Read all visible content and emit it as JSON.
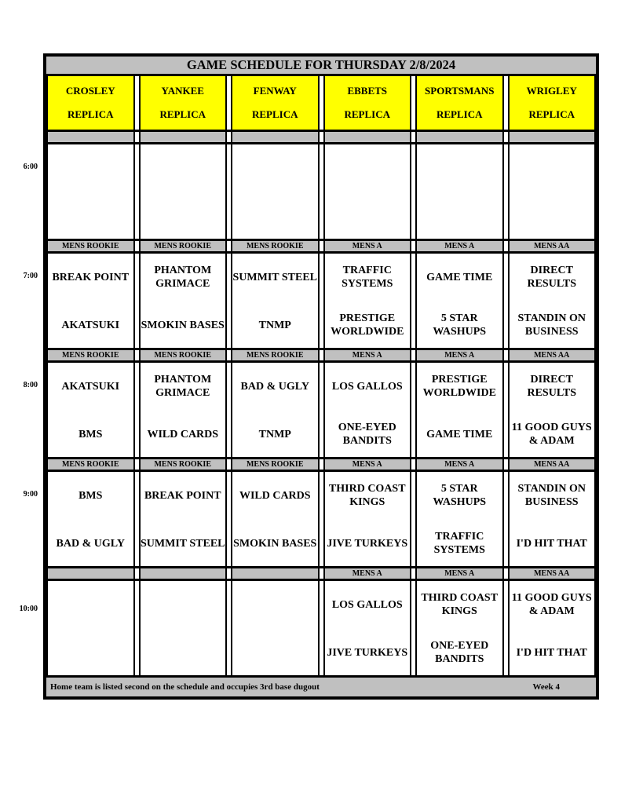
{
  "title": "GAME SCHEDULE FOR THURSDAY 2/8/2024",
  "fields": [
    {
      "name": "CROSLEY",
      "sub": "REPLICA"
    },
    {
      "name": "YANKEE",
      "sub": "REPLICA"
    },
    {
      "name": "FENWAY",
      "sub": "REPLICA"
    },
    {
      "name": "EBBETS",
      "sub": "REPLICA"
    },
    {
      "name": "SPORTSMANS",
      "sub": "REPLICA"
    },
    {
      "name": "WRIGLEY",
      "sub": "REPLICA"
    }
  ],
  "time_slots": [
    {
      "time": "6:00",
      "games": [
        {
          "division": "",
          "away": "",
          "home": ""
        },
        {
          "division": "",
          "away": "",
          "home": ""
        },
        {
          "division": "",
          "away": "",
          "home": ""
        },
        {
          "division": "",
          "away": "",
          "home": ""
        },
        {
          "division": "",
          "away": "",
          "home": ""
        },
        {
          "division": "",
          "away": "",
          "home": ""
        }
      ]
    },
    {
      "time": "7:00",
      "games": [
        {
          "division": "MENS ROOKIE",
          "away": "BREAK POINT",
          "home": "AKATSUKI"
        },
        {
          "division": "MENS ROOKIE",
          "away": "PHANTOM GRIMACE",
          "home": "SMOKIN BASES"
        },
        {
          "division": "MENS ROOKIE",
          "away": "SUMMIT STEEL",
          "home": "TNMP"
        },
        {
          "division": "MENS A",
          "away": "TRAFFIC SYSTEMS",
          "home": "PRESTIGE WORLDWIDE"
        },
        {
          "division": "MENS A",
          "away": "GAME TIME",
          "home": "5 STAR WASHUPS"
        },
        {
          "division": "MENS AA",
          "away": "DIRECT RESULTS",
          "home": "STANDIN ON BUSINESS"
        }
      ]
    },
    {
      "time": "8:00",
      "games": [
        {
          "division": "MENS ROOKIE",
          "away": "AKATSUKI",
          "home": "BMS"
        },
        {
          "division": "MENS ROOKIE",
          "away": "PHANTOM GRIMACE",
          "home": "WILD CARDS"
        },
        {
          "division": "MENS ROOKIE",
          "away": "BAD & UGLY",
          "home": "TNMP"
        },
        {
          "division": "MENS A",
          "away": "LOS GALLOS",
          "home": "ONE-EYED BANDITS"
        },
        {
          "division": "MENS A",
          "away": "PRESTIGE WORLDWIDE",
          "home": "GAME TIME"
        },
        {
          "division": "MENS AA",
          "away": "DIRECT RESULTS",
          "home": "11 GOOD GUYS & ADAM"
        }
      ]
    },
    {
      "time": "9:00",
      "games": [
        {
          "division": "MENS ROOKIE",
          "away": "BMS",
          "home": "BAD & UGLY"
        },
        {
          "division": "MENS ROOKIE",
          "away": "BREAK POINT",
          "home": "SUMMIT STEEL"
        },
        {
          "division": "MENS ROOKIE",
          "away": "WILD CARDS",
          "home": "SMOKIN BASES"
        },
        {
          "division": "MENS A",
          "away": "THIRD COAST KINGS",
          "home": "JIVE TURKEYS"
        },
        {
          "division": "MENS A",
          "away": "5 STAR WASHUPS",
          "home": "TRAFFIC SYSTEMS"
        },
        {
          "division": "MENS AA",
          "away": "STANDIN ON BUSINESS",
          "home": "I'D HIT THAT"
        }
      ]
    },
    {
      "time": "10:00",
      "games": [
        {
          "division": "",
          "away": "",
          "home": ""
        },
        {
          "division": "",
          "away": "",
          "home": ""
        },
        {
          "division": "",
          "away": "",
          "home": ""
        },
        {
          "division": "MENS A",
          "away": "LOS GALLOS",
          "home": "JIVE TURKEYS"
        },
        {
          "division": "MENS A",
          "away": "THIRD COAST KINGS",
          "home": "ONE-EYED BANDITS"
        },
        {
          "division": "MENS AA",
          "away": "11 GOOD GUYS & ADAM",
          "home": "I'D HIT THAT"
        }
      ]
    }
  ],
  "footer": {
    "note": "Home team is listed second on the schedule and occupies 3rd base dugout",
    "week": "Week 4"
  },
  "colors": {
    "header_bg": "#ffff00",
    "band_bg": "#c0c0c0",
    "border": "#000000"
  }
}
